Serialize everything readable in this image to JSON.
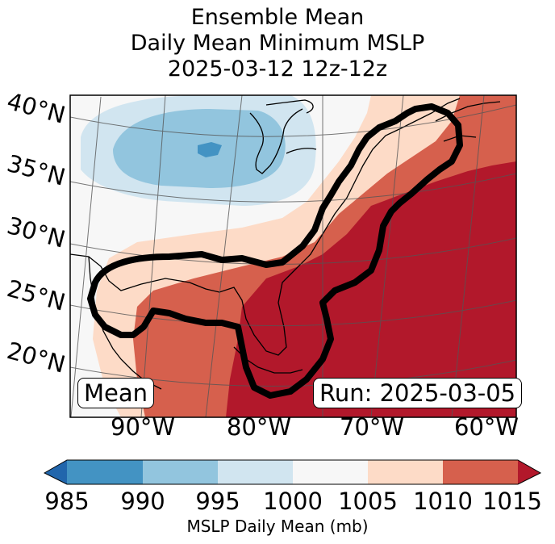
{
  "title": {
    "line1": "Ensemble Mean",
    "line2": "Daily Mean Minimum MSLP",
    "line3": "2025-03-12 12z-12z"
  },
  "map": {
    "lat_labels": [
      "40°N",
      "35°N",
      "30°N",
      "25°N",
      "20°N"
    ],
    "lon_labels": [
      "90°W",
      "80°W",
      "70°W",
      "60°W"
    ],
    "left_box": "Mean",
    "right_box": "Run: 2025-03-05",
    "contour_color": "#000000"
  },
  "colorbar": {
    "label": "MSLP Daily Mean (mb)",
    "ticks": [
      "985",
      "990",
      "995",
      "1000",
      "1005",
      "1010",
      "1015"
    ],
    "colors": [
      "#2166ac",
      "#4393c3",
      "#92c5de",
      "#d1e5f0",
      "#f7f7f7",
      "#fddbc7",
      "#d6604d",
      "#b2182b"
    ]
  }
}
